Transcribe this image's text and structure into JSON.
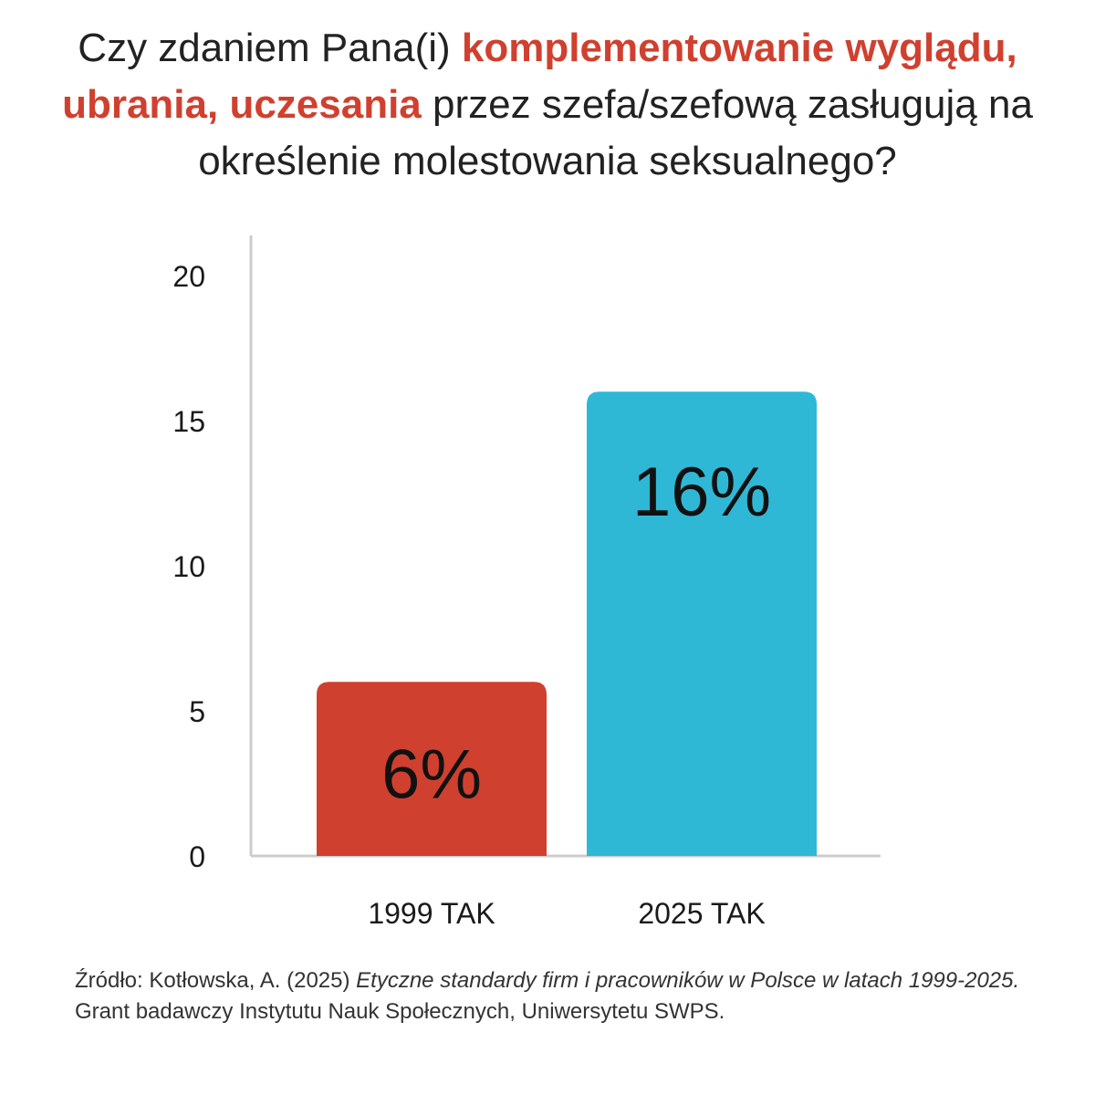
{
  "title": {
    "part1": "Czy zdaniem Pana(i) ",
    "highlight": "komplementowanie wyglądu, ubrania, uczesania",
    "part2": " przez szefa/szefową zasługują na określenie molestowania seksualnego?"
  },
  "source": {
    "prefix": "Źródło: Kotłowska, A. (2025) ",
    "italic": "Etyczne standardy firm i  pracowników w Polsce w latach 1999-2025.",
    "suffix": " Grant badawczy Instytutu Nauk Społecznych, Uniwersytetu SWPS."
  },
  "colors": {
    "highlight": "#d0402f",
    "bar_1999": "#d0402f",
    "bar_2025": "#2fb8d6",
    "axis": "#cccccc"
  },
  "chart_data": {
    "type": "bar",
    "categories": [
      "1999 TAK",
      "2025 TAK"
    ],
    "values": [
      6,
      16
    ],
    "data_labels": [
      "6%",
      "16%"
    ],
    "bar_colors": [
      "#d0402f",
      "#2fb8d6"
    ],
    "ylim": [
      0,
      20
    ],
    "yticks": [
      "0",
      "5",
      "10",
      "15",
      "20"
    ],
    "ytick_values": [
      0,
      5,
      10,
      15,
      20
    ],
    "grid": false,
    "legend": "none"
  }
}
